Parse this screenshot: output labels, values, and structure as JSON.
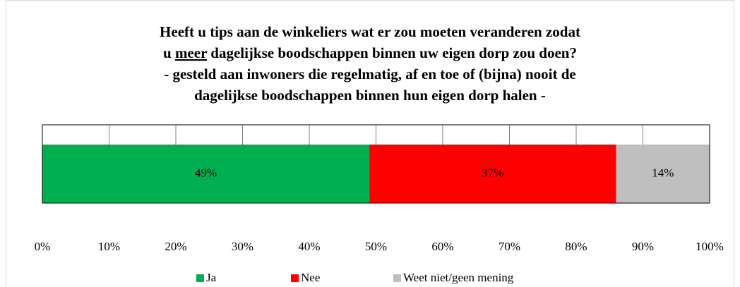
{
  "chart_data": {
    "type": "stacked_barh",
    "title": [
      [
        {
          "text": "Heeft u tips aan de winkeliers wat er zou moeten veranderen zodat"
        }
      ],
      [
        {
          "text": "u "
        },
        {
          "text": "meer",
          "underline": true
        },
        {
          "text": " dagelijkse boodschappen binnen uw eigen dorp zou doen?"
        }
      ],
      [
        {
          "text": "- gesteld aan inwoners die regelmatig, af en toe of (bijna) nooit de"
        }
      ],
      [
        {
          "text": "dagelijkse boodschappen binnen hun eigen dorp halen -"
        }
      ]
    ],
    "categories": [
      null
    ],
    "series": [
      {
        "name": "Ja",
        "color": "#00b050",
        "values": [
          49
        ],
        "value_labels": [
          "49%"
        ]
      },
      {
        "name": "Nee",
        "color": "#ff0000",
        "values": [
          37
        ],
        "value_labels": [
          "37%"
        ]
      },
      {
        "name": "Weet niet/geen mening",
        "color": "#bfbfbf",
        "values": [
          14
        ],
        "value_labels": [
          "14%"
        ]
      }
    ],
    "xlim": [
      0,
      100
    ],
    "xticks": [
      {
        "value": 0,
        "label": "0%"
      },
      {
        "value": 10,
        "label": "10%"
      },
      {
        "value": 20,
        "label": "20%"
      },
      {
        "value": 30,
        "label": "30%"
      },
      {
        "value": 40,
        "label": "40%"
      },
      {
        "value": 50,
        "label": "50%"
      },
      {
        "value": 60,
        "label": "60%"
      },
      {
        "value": 70,
        "label": "70%"
      },
      {
        "value": 80,
        "label": "80%"
      },
      {
        "value": 90,
        "label": "90%"
      },
      {
        "value": 100,
        "label": "100%"
      }
    ],
    "grid": true,
    "legend": "bottom"
  }
}
